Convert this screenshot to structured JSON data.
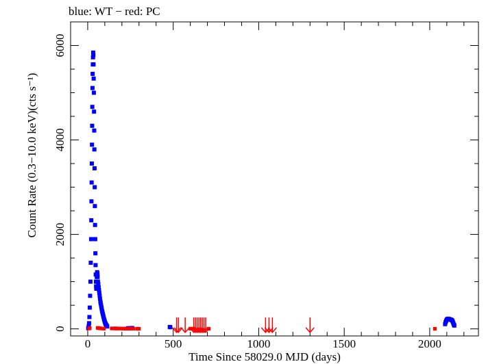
{
  "chart_data": {
    "type": "scatter",
    "title": "blue: WT − red: PC",
    "xlabel": "Time Since 58029.0 MJD (days)",
    "ylabel": "Count Rate (0.3−10.0 keV)(cts s⁻¹)",
    "xlim": [
      -100,
      2285
    ],
    "ylim": [
      -150,
      6500
    ],
    "x_ticks": [
      0,
      500,
      1000,
      1500,
      2000
    ],
    "y_ticks": [
      0,
      2000,
      4000,
      6000
    ],
    "grid": false,
    "series": [
      {
        "name": "WT",
        "color": "#0000ff",
        "marker": "point",
        "points": [
          [
            3,
            15
          ],
          [
            6,
            60
          ],
          [
            8,
            120
          ],
          [
            10,
            250
          ],
          [
            12,
            450
          ],
          [
            14,
            700
          ],
          [
            16,
            1000
          ],
          [
            18,
            1400
          ],
          [
            20,
            1900
          ],
          [
            21,
            2300
          ],
          [
            22,
            2700
          ],
          [
            23,
            3100
          ],
          [
            24,
            3500
          ],
          [
            25,
            3900
          ],
          [
            26,
            4300
          ],
          [
            27,
            4700
          ],
          [
            28,
            5100
          ],
          [
            29,
            5400
          ],
          [
            30,
            5600
          ],
          [
            31,
            5750
          ],
          [
            32,
            5850
          ],
          [
            33,
            5800
          ],
          [
            34,
            5600
          ],
          [
            35,
            5300
          ],
          [
            36,
            5000
          ],
          [
            37,
            4600
          ],
          [
            38,
            4200
          ],
          [
            39,
            3800
          ],
          [
            40,
            3400
          ],
          [
            41,
            3000
          ],
          [
            42,
            2600
          ],
          [
            43,
            2200
          ],
          [
            44,
            1900
          ],
          [
            45,
            1600
          ],
          [
            46,
            1350
          ],
          [
            47,
            1150
          ],
          [
            48,
            1000
          ],
          [
            49,
            900
          ],
          [
            50,
            850
          ],
          [
            51,
            900
          ],
          [
            52,
            1000
          ],
          [
            53,
            1100
          ],
          [
            54,
            1150
          ],
          [
            55,
            1200
          ],
          [
            56,
            1180
          ],
          [
            57,
            1150
          ],
          [
            58,
            1100
          ],
          [
            60,
            1000
          ],
          [
            62,
            950
          ],
          [
            64,
            880
          ],
          [
            66,
            820
          ],
          [
            68,
            760
          ],
          [
            70,
            700
          ],
          [
            72,
            640
          ],
          [
            74,
            580
          ],
          [
            76,
            540
          ],
          [
            78,
            500
          ],
          [
            80,
            460
          ],
          [
            82,
            420
          ],
          [
            84,
            380
          ],
          [
            86,
            350
          ],
          [
            88,
            320
          ],
          [
            90,
            290
          ],
          [
            92,
            260
          ],
          [
            94,
            230
          ],
          [
            96,
            200
          ],
          [
            98,
            175
          ],
          [
            100,
            150
          ],
          [
            102,
            130
          ],
          [
            104,
            110
          ],
          [
            106,
            95
          ],
          [
            108,
            80
          ],
          [
            110,
            70
          ],
          [
            112,
            60
          ],
          [
            114,
            50
          ],
          [
            235,
            10
          ],
          [
            240,
            15
          ],
          [
            250,
            12
          ],
          [
            260,
            18
          ],
          [
            480,
            40
          ],
          [
            483,
            35
          ],
          [
            2090,
            100
          ],
          [
            2093,
            140
          ],
          [
            2096,
            170
          ],
          [
            2099,
            190
          ],
          [
            2102,
            200
          ],
          [
            2105,
            210
          ],
          [
            2108,
            215
          ],
          [
            2111,
            210
          ],
          [
            2114,
            205
          ],
          [
            2117,
            200
          ],
          [
            2120,
            200
          ],
          [
            2123,
            195
          ],
          [
            2126,
            190
          ],
          [
            2129,
            185
          ],
          [
            2132,
            175
          ],
          [
            2135,
            150
          ],
          [
            2138,
            120
          ],
          [
            2141,
            90
          ],
          [
            2144,
            70
          ]
        ]
      },
      {
        "name": "PC",
        "color": "#ff0000",
        "marker": "point",
        "points": [
          [
            8,
            8
          ],
          [
            12,
            15
          ],
          [
            58,
            20
          ],
          [
            66,
            15
          ],
          [
            72,
            12
          ],
          [
            82,
            8
          ],
          [
            95,
            5
          ],
          [
            140,
            10
          ],
          [
            150,
            8
          ],
          [
            160,
            12
          ],
          [
            170,
            6
          ],
          [
            180,
            9
          ],
          [
            195,
            7
          ],
          [
            205,
            5
          ],
          [
            215,
            6
          ],
          [
            225,
            4
          ],
          [
            245,
            6
          ],
          [
            262,
            5
          ],
          [
            268,
            4
          ],
          [
            290,
            3
          ],
          [
            300,
            2
          ],
          [
            600,
            4
          ],
          [
            620,
            5
          ],
          [
            708,
            3
          ],
          [
            2030,
            2
          ]
        ]
      },
      {
        "name": "PC upper limits",
        "color": "#ff0000",
        "marker": "down-arrow",
        "points": [
          [
            520,
            40
          ],
          [
            530,
            40
          ],
          [
            570,
            40
          ],
          [
            620,
            40
          ],
          [
            630,
            40
          ],
          [
            640,
            40
          ],
          [
            650,
            40
          ],
          [
            660,
            40
          ],
          [
            670,
            40
          ],
          [
            680,
            40
          ],
          [
            690,
            40
          ],
          [
            1040,
            40
          ],
          [
            1060,
            40
          ],
          [
            1080,
            40
          ],
          [
            1300,
            40
          ]
        ]
      }
    ]
  }
}
